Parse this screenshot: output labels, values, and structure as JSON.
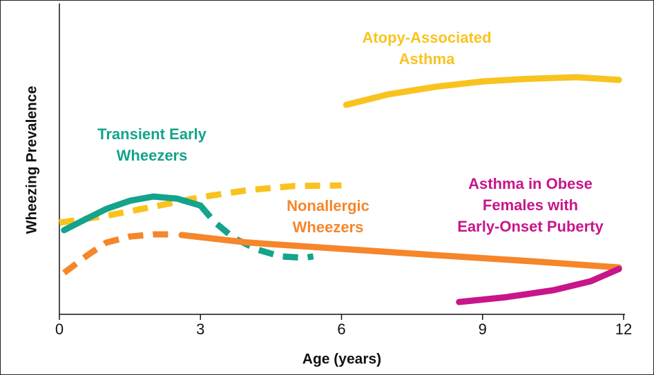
{
  "chart_data": {
    "type": "line",
    "xlabel": "Age (years)",
    "ylabel": "Wheezing Prevalence",
    "xlim": [
      0,
      12
    ],
    "xticks": [
      0,
      3,
      6,
      9,
      12
    ],
    "ylim": [
      0,
      100
    ],
    "series": [
      {
        "name": [
          "Atopy-Associated",
          "Asthma"
        ],
        "color": "#f9c31f",
        "segments": [
          {
            "style": "dashed",
            "x": [
              0,
              1,
              2,
              3,
              4,
              5,
              6
            ],
            "values": [
              30.5,
              32.8,
              35.8,
              39.0,
              41.3,
              42.7,
              42.9
            ]
          },
          {
            "style": "solid",
            "x": [
              6.1,
              7,
              8,
              9,
              10,
              11,
              11.9
            ],
            "values": [
              69.7,
              73.2,
              75.7,
              77.5,
              78.4,
              78.9,
              78.0
            ]
          }
        ]
      },
      {
        "name": [
          "Transient Early",
          "Wheezers"
        ],
        "color": "#14a38b",
        "segments": [
          {
            "style": "solid",
            "x": [
              0.1,
              0.5,
              1,
              1.5,
              2,
              2.5,
              3
            ],
            "values": [
              28.0,
              31.2,
              35.1,
              37.8,
              39.2,
              38.5,
              36.2
            ]
          },
          {
            "style": "dashed",
            "x": [
              3,
              3.3,
              3.7,
              4.2,
              4.7,
              5.2,
              5.4
            ],
            "values": [
              36.2,
              30.7,
              25.5,
              21.6,
              19.3,
              18.8,
              19.3
            ]
          }
        ]
      },
      {
        "name": [
          "Nonallergic",
          "Wheezers"
        ],
        "color": "#f5862a",
        "segments": [
          {
            "style": "dashed",
            "x": [
              0.1,
              0.6,
              1,
              1.5,
              2,
              2.5
            ],
            "values": [
              13.8,
              19.7,
              23.9,
              25.9,
              26.6,
              26.6
            ]
          },
          {
            "style": "solid",
            "x": [
              2.6,
              4,
              6,
              8,
              10,
              11.9
            ],
            "values": [
              26.4,
              23.9,
              21.8,
              19.7,
              17.7,
              15.6
            ]
          }
        ]
      },
      {
        "name": [
          "Asthma in Obese",
          "Females with",
          "Early-Onset Puberty"
        ],
        "color": "#c8158a",
        "segments": [
          {
            "style": "solid",
            "x": [
              8.5,
              9.5,
              10.5,
              11.3,
              11.9
            ],
            "values": [
              4.1,
              5.7,
              8.0,
              11.0,
              15.1
            ]
          }
        ]
      }
    ]
  }
}
